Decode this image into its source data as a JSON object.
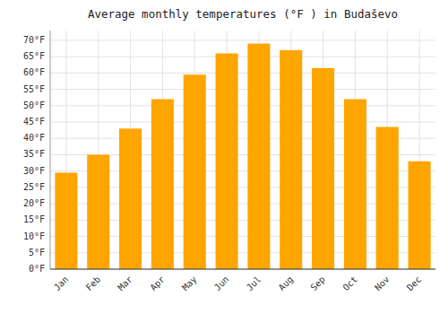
{
  "chart_data": {
    "type": "bar",
    "title": "Average monthly temperatures (°F ) in Budaševo",
    "categories": [
      "Jan",
      "Feb",
      "Mar",
      "Apr",
      "May",
      "Jun",
      "Jul",
      "Aug",
      "Sep",
      "Oct",
      "Nov",
      "Dec"
    ],
    "values": [
      29.5,
      35.0,
      43.0,
      52.0,
      59.5,
      66.0,
      69.0,
      67.0,
      61.5,
      52.0,
      43.5,
      33.0
    ],
    "color": "#FFA500",
    "ylim": [
      0,
      73
    ],
    "yticks": [
      {
        "value": 0,
        "label": "0°F"
      },
      {
        "value": 5,
        "label": "5°F"
      },
      {
        "value": 10,
        "label": "10°F"
      },
      {
        "value": 15,
        "label": "15°F"
      },
      {
        "value": 20,
        "label": "20°F"
      },
      {
        "value": 25,
        "label": "25°F"
      },
      {
        "value": 30,
        "label": "30°F"
      },
      {
        "value": 35,
        "label": "35°F"
      },
      {
        "value": 40,
        "label": "40°F"
      },
      {
        "value": 45,
        "label": "45°F"
      },
      {
        "value": 50,
        "label": "50°F"
      },
      {
        "value": 55,
        "label": "55°F"
      },
      {
        "value": 60,
        "label": "60°F"
      },
      {
        "value": 65,
        "label": "65°F"
      },
      {
        "value": 70,
        "label": "70°F"
      }
    ],
    "grid": true
  }
}
